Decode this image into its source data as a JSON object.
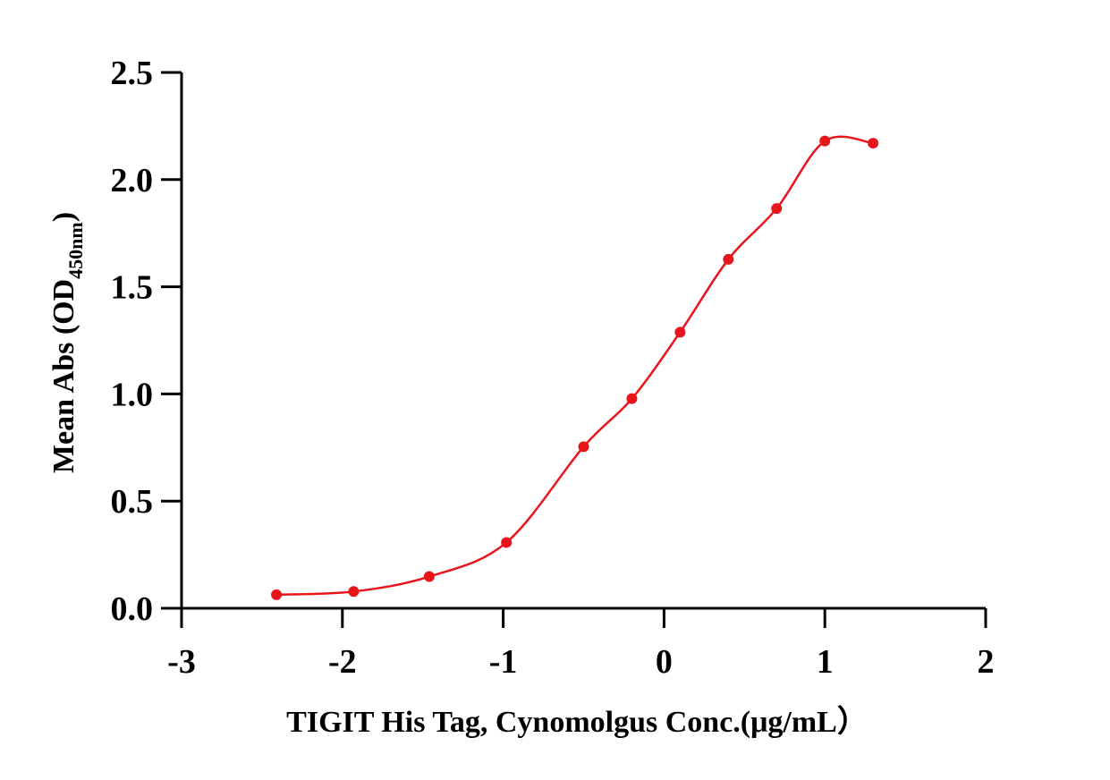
{
  "chart_data": {
    "type": "scatter",
    "title": "",
    "xlabel": "TIGIT His Tag, Cynomolgus  Conc.(μg/mL）",
    "ylabel_main": "Mean Abs (OD",
    "ylabel_sub": "450nm",
    "ylabel_close": ")",
    "xlim": [
      -3,
      2
    ],
    "ylim": [
      0,
      2.5
    ],
    "x_ticks": [
      -3,
      -2,
      -1,
      0,
      1,
      2
    ],
    "x_tick_labels": [
      "-3",
      "-2",
      "-1",
      "0",
      "1",
      "2"
    ],
    "y_ticks": [
      0,
      0.5,
      1.0,
      1.5,
      2.0,
      2.5
    ],
    "y_tick_labels": [
      "0.0",
      "0.5",
      "1.0",
      "1.5",
      "2.0",
      "2.5"
    ],
    "grid": false,
    "series": [
      {
        "points_x": [
          -2.41,
          -1.93,
          -1.46,
          -0.98,
          -0.5,
          -0.2,
          0.1,
          0.4,
          0.7,
          1.0,
          1.3
        ],
        "points_y": [
          0.063,
          0.078,
          0.148,
          0.307,
          0.754,
          0.978,
          1.288,
          1.628,
          1.865,
          2.18,
          2.17
        ],
        "color": "#e8151b",
        "fit": "4PL",
        "fit_range": [
          -2.41,
          1.3
        ]
      }
    ]
  }
}
